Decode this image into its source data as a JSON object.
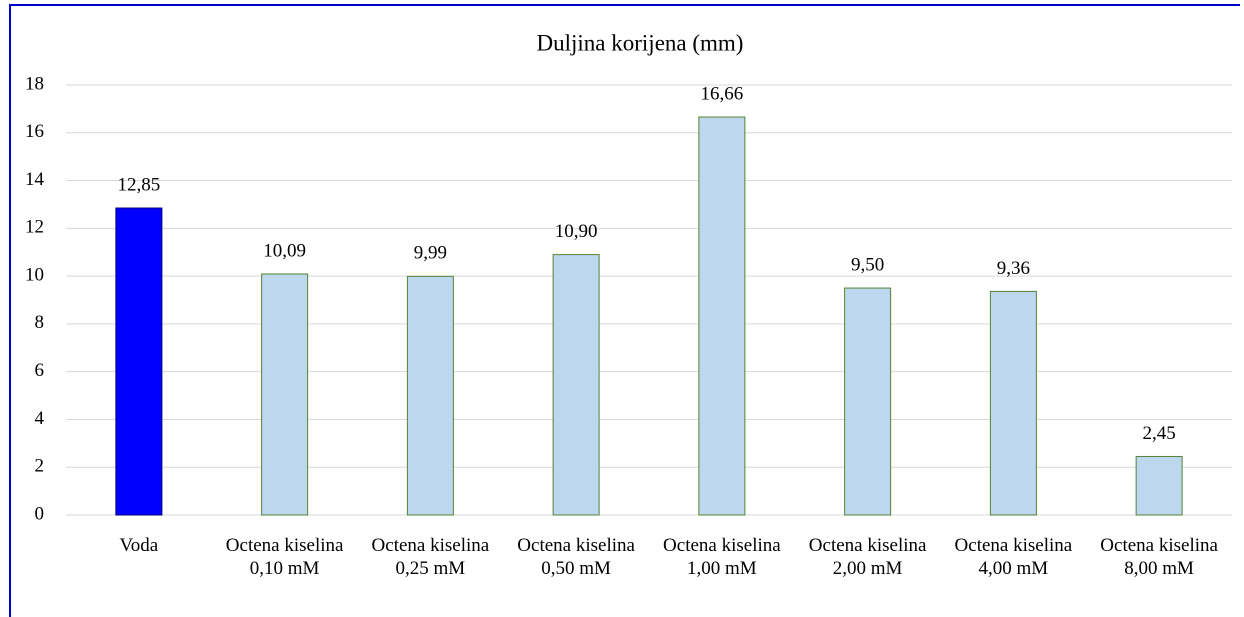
{
  "chart_data": {
    "type": "bar",
    "title": "Duljina korijena (mm)",
    "categories": [
      "Voda",
      "Octena kiselina 0,10 mM",
      "Octena kiselina 0,25 mM",
      "Octena kiselina 0,50 mM",
      "Octena kiselina 1,00 mM",
      "Octena kiselina 2,00 mM",
      "Octena kiselina 4,00 mM",
      "Octena kiselina 8,00 mM"
    ],
    "values": [
      12.85,
      10.09,
      9.99,
      10.9,
      16.66,
      9.5,
      9.36,
      2.45
    ],
    "value_labels": [
      "12,85",
      "10,09",
      "9,99",
      "10,90",
      "16,66",
      "9,50",
      "9,36",
      "2,45"
    ],
    "colors": [
      "#0000ff",
      "#bdd7ee",
      "#bdd7ee",
      "#bdd7ee",
      "#bdd7ee",
      "#bdd7ee",
      "#bdd7ee",
      "#bdd7ee"
    ],
    "edgecolors": [
      "#000080",
      "#548235",
      "#548235",
      "#548235",
      "#548235",
      "#548235",
      "#548235",
      "#548235"
    ],
    "ylim": [
      0,
      18
    ],
    "yticks": [
      0,
      2,
      4,
      6,
      8,
      10,
      12,
      14,
      16,
      18
    ],
    "grid": true
  }
}
